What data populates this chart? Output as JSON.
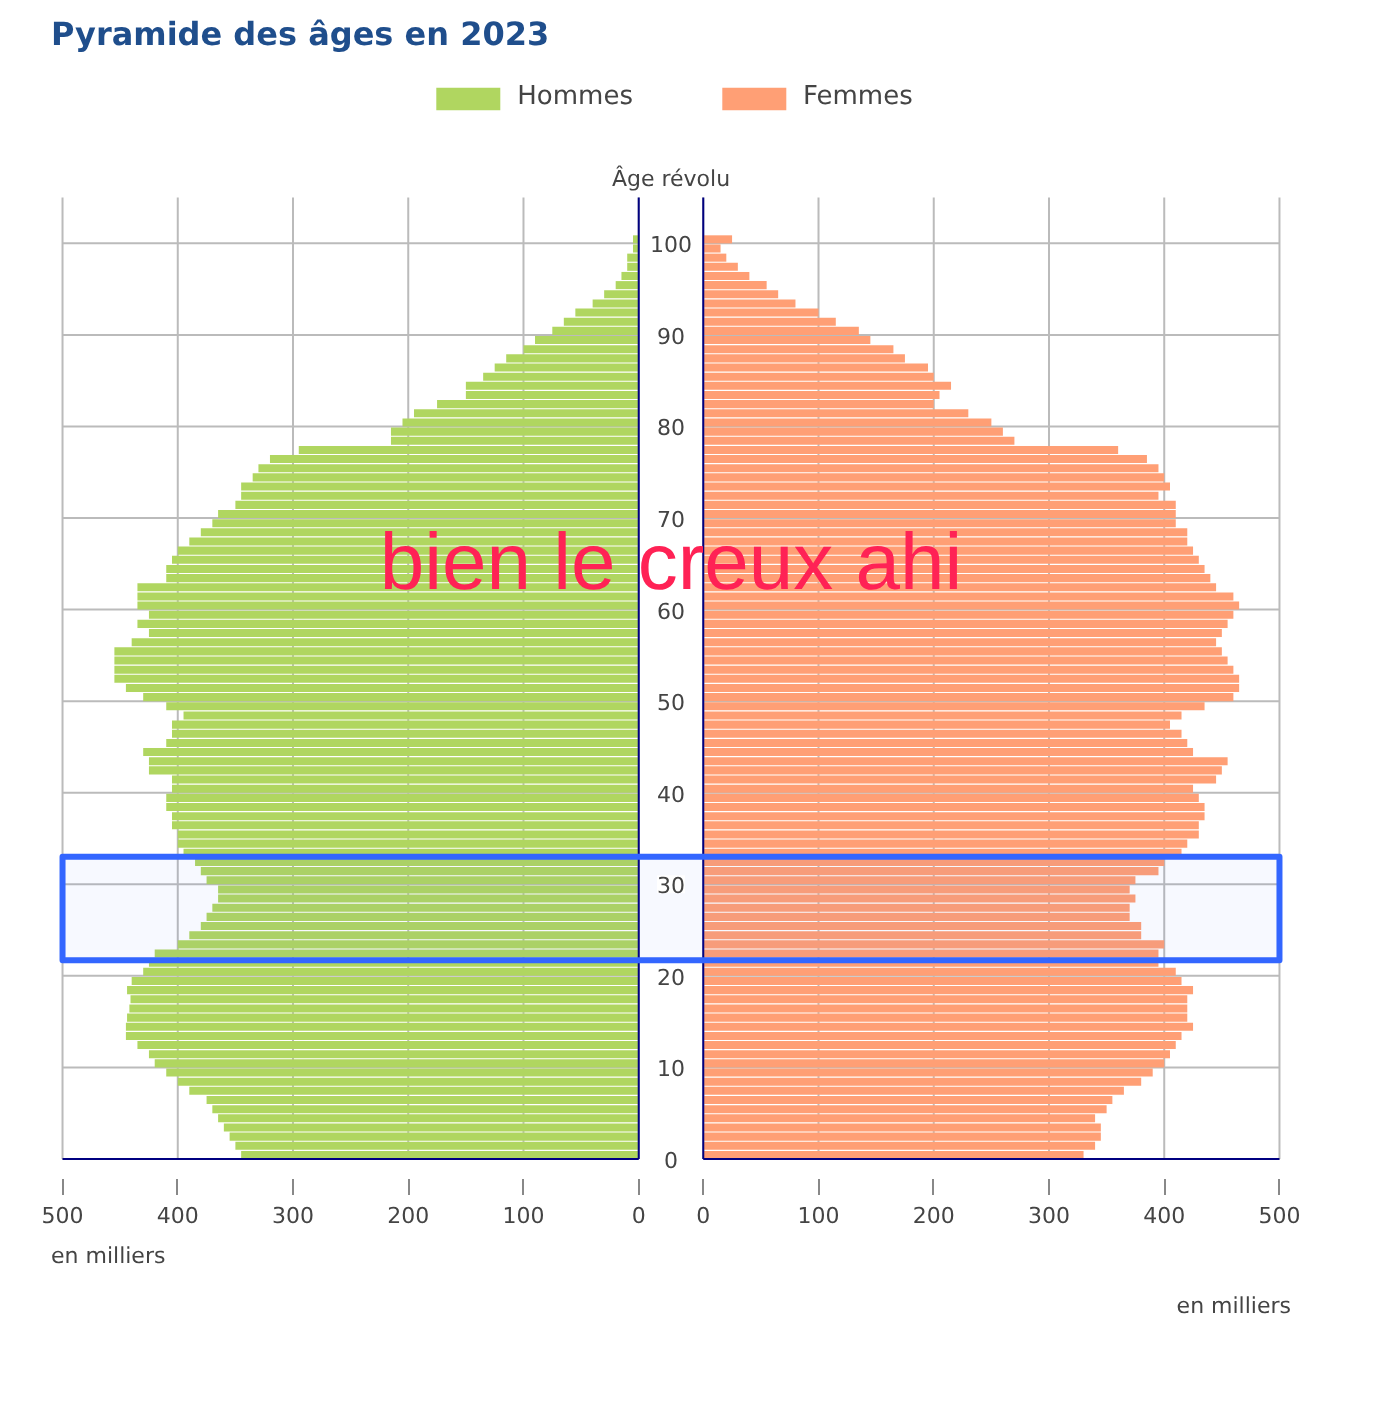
{
  "chart_data": [
    {
      "type": "bar",
      "orientation": "horizontal",
      "title": "Pyramide des âges en 2023",
      "ylabel": "Âge révolu",
      "xlabel": "en milliers",
      "annotations": [
        "bien le creux ahi"
      ],
      "x": [
        0,
        1,
        2,
        3,
        4,
        5,
        6,
        7,
        8,
        9,
        10,
        11,
        12,
        13,
        14,
        15,
        16,
        17,
        18,
        19,
        20,
        21,
        22,
        23,
        24,
        25,
        26,
        27,
        28,
        29,
        30,
        31,
        32,
        33,
        34,
        35,
        36,
        37,
        38,
        39,
        40,
        41,
        42,
        43,
        44,
        45,
        46,
        47,
        48,
        49,
        50,
        51,
        52,
        53,
        54,
        55,
        56,
        57,
        58,
        59,
        60,
        61,
        62,
        63,
        64,
        65,
        66,
        67,
        68,
        69,
        70,
        71,
        72,
        73,
        74,
        75,
        76,
        77,
        78,
        79,
        80,
        81,
        82,
        83,
        84,
        85,
        86,
        87,
        88,
        89,
        90,
        91,
        92,
        93,
        94,
        95,
        96,
        97,
        98,
        99,
        100
      ],
      "xlim": [
        500,
        0
      ],
      "xticks": [
        500,
        400,
        300,
        200,
        100,
        0
      ],
      "ylim": [
        0,
        105
      ],
      "yticks": [
        0,
        10,
        20,
        30,
        40,
        50,
        60,
        70,
        80,
        90,
        100
      ],
      "grid": true,
      "legend": "top",
      "bands": [
        {
          "axis": "y",
          "from": 21.7,
          "to": 33,
          "color": "#3366ff"
        }
      ],
      "series": [
        {
          "name": "Hommes",
          "color": "#b0d660",
          "values": [
            345,
            350,
            355,
            360,
            365,
            370,
            375,
            390,
            400,
            410,
            420,
            425,
            435,
            445,
            445,
            444,
            442,
            441,
            444,
            440,
            430,
            425,
            420,
            400,
            390,
            380,
            375,
            370,
            365,
            365,
            375,
            380,
            385,
            395,
            400,
            400,
            405,
            405,
            410,
            410,
            405,
            405,
            425,
            425,
            430,
            410,
            405,
            405,
            395,
            410,
            430,
            445,
            455,
            455,
            455,
            455,
            440,
            425,
            435,
            425,
            435,
            435,
            435,
            410,
            410,
            405,
            400,
            390,
            380,
            370,
            365,
            350,
            345,
            345,
            335,
            330,
            320,
            295,
            215,
            215,
            205,
            195,
            175,
            150,
            150,
            135,
            125,
            115,
            100,
            90,
            75,
            65,
            55,
            40,
            30,
            20,
            15,
            10,
            10,
            5,
            5
          ]
        }
      ]
    },
    {
      "type": "bar",
      "orientation": "horizontal",
      "xlabel": "en milliers",
      "tick_labels": "x",
      "x": [
        0,
        1,
        2,
        3,
        4,
        5,
        6,
        7,
        8,
        9,
        10,
        11,
        12,
        13,
        14,
        15,
        16,
        17,
        18,
        19,
        20,
        21,
        22,
        23,
        24,
        25,
        26,
        27,
        28,
        29,
        30,
        31,
        32,
        33,
        34,
        35,
        36,
        37,
        38,
        39,
        40,
        41,
        42,
        43,
        44,
        45,
        46,
        47,
        48,
        49,
        50,
        51,
        52,
        53,
        54,
        55,
        56,
        57,
        58,
        59,
        60,
        61,
        62,
        63,
        64,
        65,
        66,
        67,
        68,
        69,
        70,
        71,
        72,
        73,
        74,
        75,
        76,
        77,
        78,
        79,
        80,
        81,
        82,
        83,
        84,
        85,
        86,
        87,
        88,
        89,
        90,
        91,
        92,
        93,
        94,
        95,
        96,
        97,
        98,
        99,
        100
      ],
      "xlim": [
        0,
        500
      ],
      "xticks": [
        0,
        100,
        200,
        300,
        400,
        500
      ],
      "ylim": [
        0,
        105
      ],
      "yticks": [
        0,
        10,
        20,
        30,
        40,
        50,
        60,
        70,
        80,
        90,
        100
      ],
      "grid": true,
      "legend": "top",
      "bands": [
        {
          "axis": "y",
          "from": 21.7,
          "to": 33,
          "color": "#3366ff"
        }
      ],
      "series": [
        {
          "name": "Femmes",
          "color": "#ff9f75",
          "values": [
            330,
            340,
            345,
            345,
            340,
            350,
            355,
            365,
            380,
            390,
            400,
            405,
            410,
            415,
            425,
            420,
            420,
            420,
            425,
            415,
            410,
            395,
            395,
            400,
            380,
            380,
            370,
            370,
            375,
            370,
            375,
            395,
            400,
            415,
            420,
            430,
            430,
            435,
            435,
            430,
            425,
            445,
            450,
            455,
            425,
            420,
            415,
            405,
            415,
            435,
            460,
            465,
            465,
            460,
            455,
            450,
            445,
            450,
            455,
            460,
            465,
            460,
            445,
            440,
            435,
            430,
            425,
            420,
            420,
            410,
            410,
            410,
            395,
            405,
            400,
            395,
            385,
            360,
            270,
            260,
            250,
            230,
            200,
            205,
            215,
            200,
            195,
            175,
            165,
            145,
            135,
            115,
            100,
            80,
            65,
            55,
            40,
            30,
            20,
            15,
            25
          ]
        }
      ]
    }
  ]
}
